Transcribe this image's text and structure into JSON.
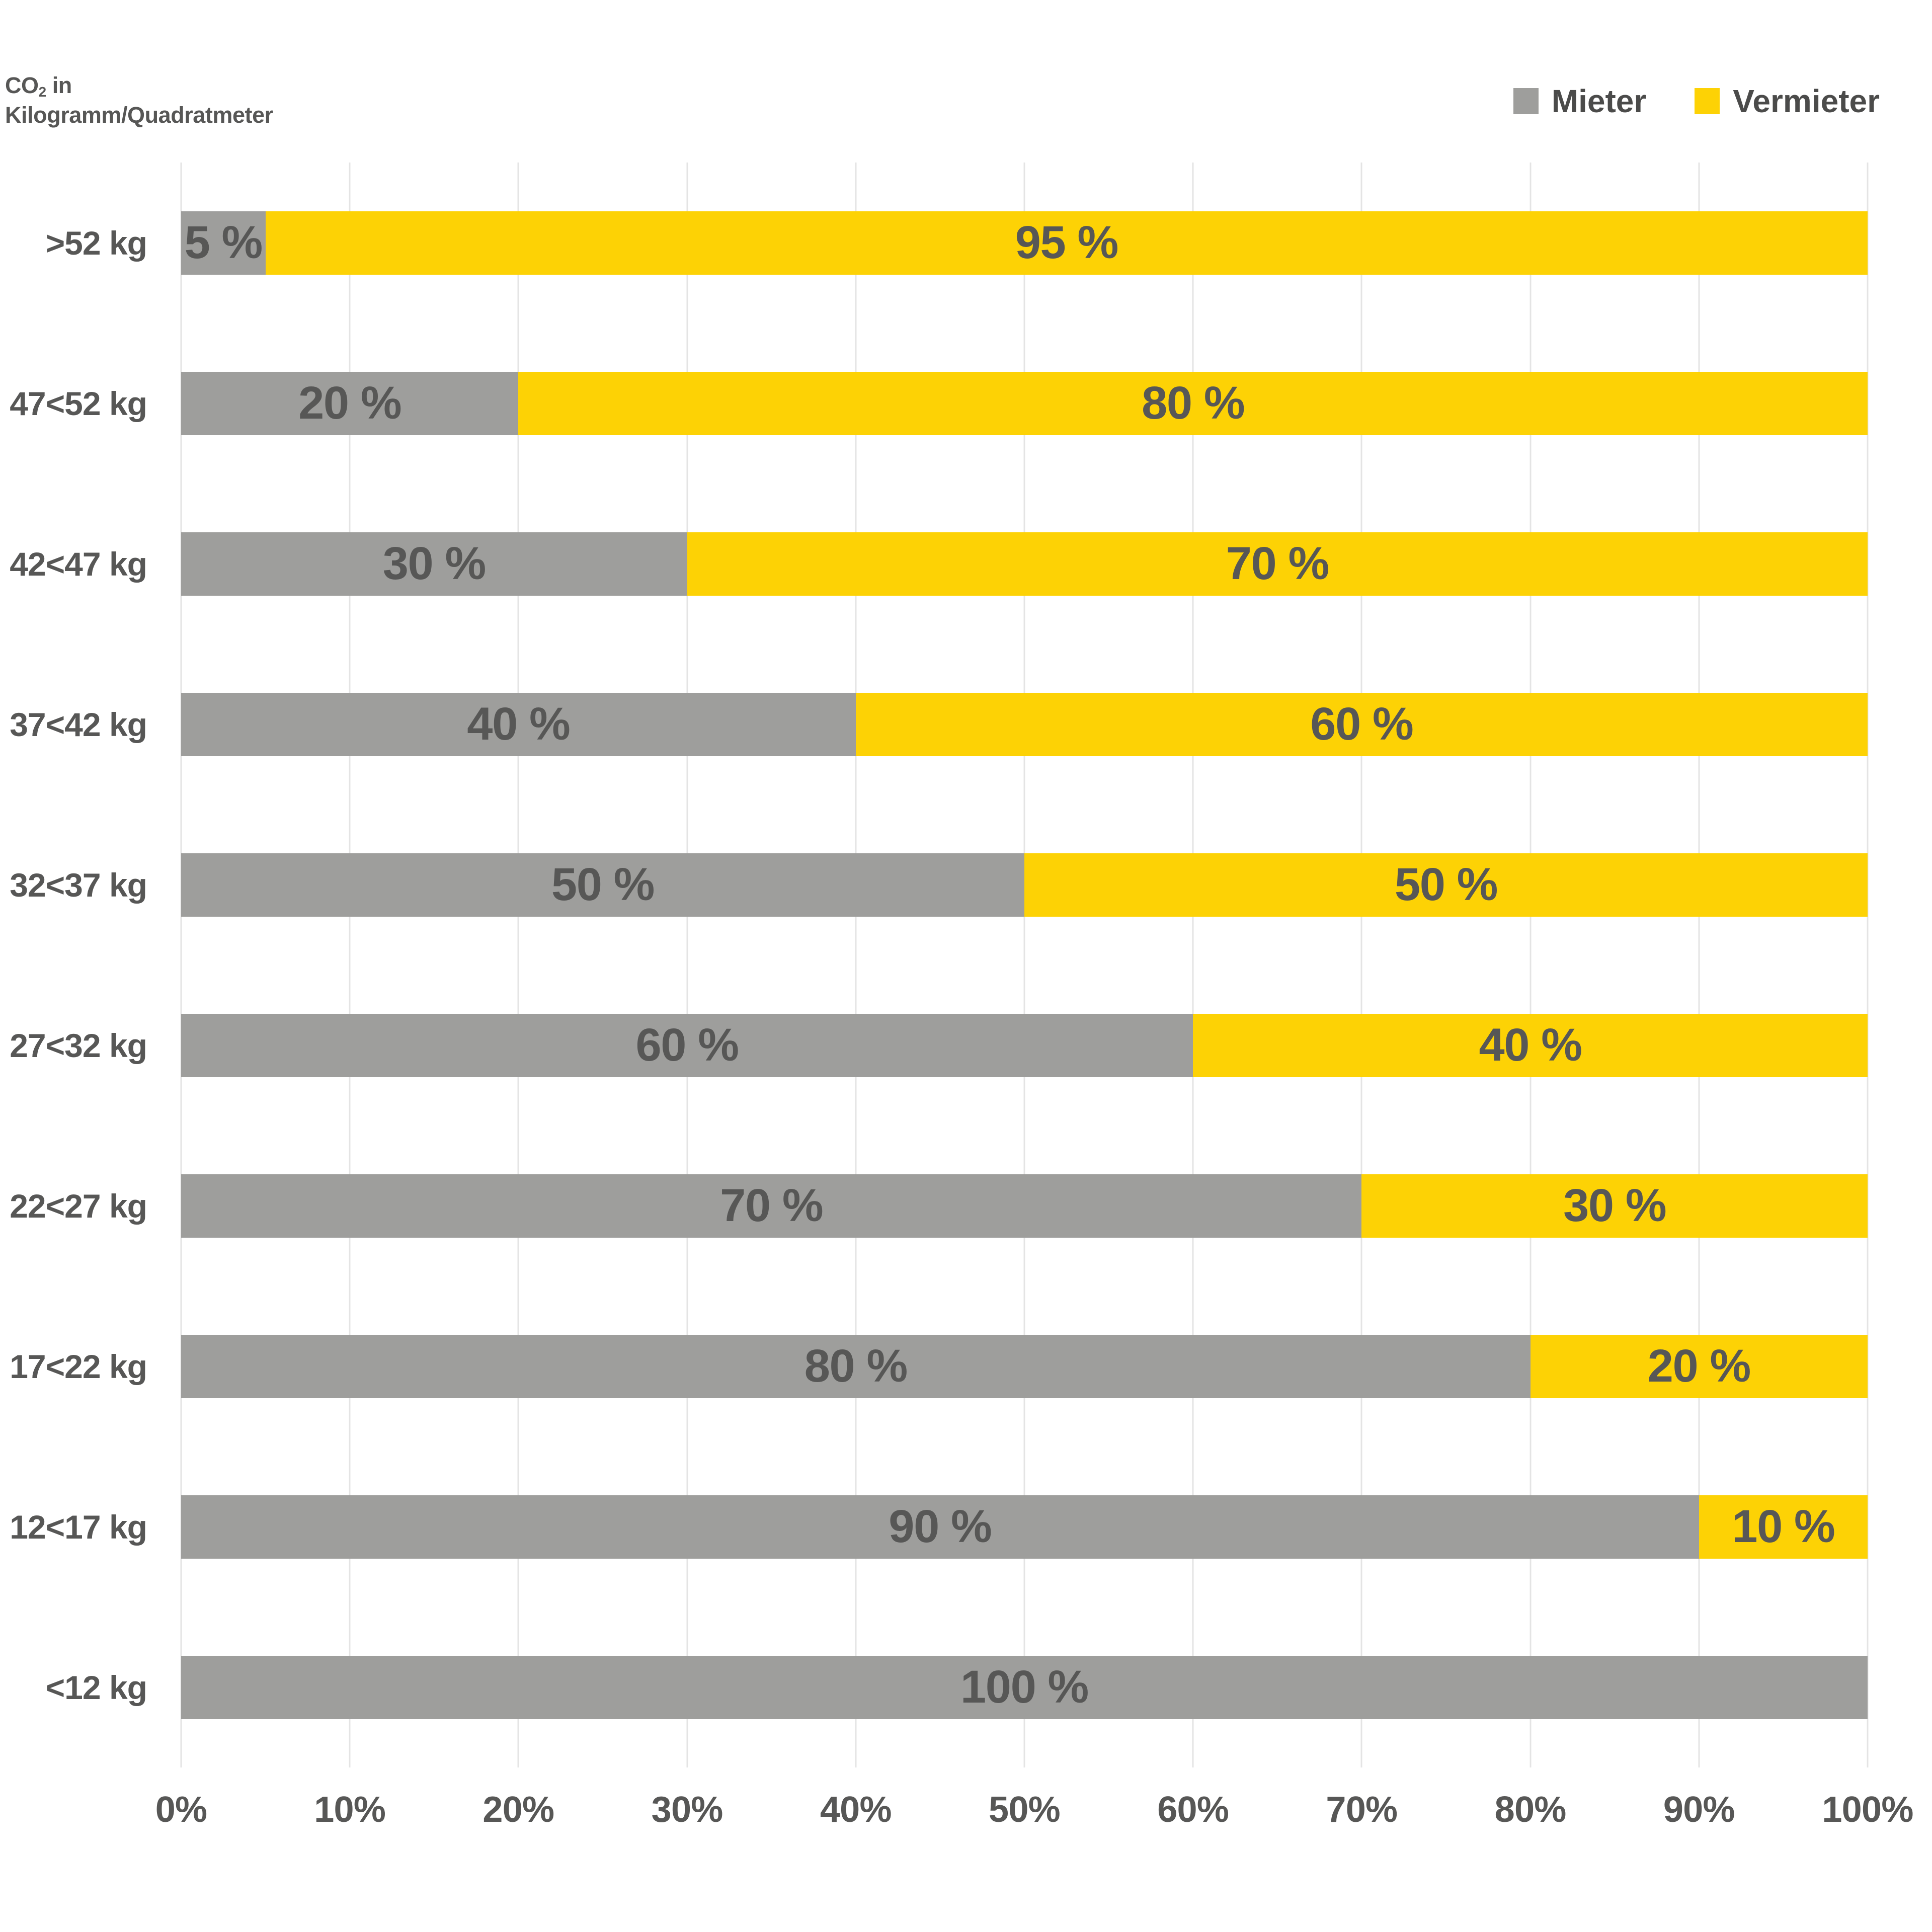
{
  "header": {
    "co2_prefix": "CO",
    "co2_sub": "2",
    "co2_rest": " in",
    "line2": "Kilogramm/Quadratmeter"
  },
  "legend": [
    {
      "label": "Mieter",
      "color": "#9e9e9c"
    },
    {
      "label": "Vermieter",
      "color": "#fdd205"
    }
  ],
  "colors": {
    "mieter_gray": "#9e9e9c",
    "vermieter_yellow": "#fdd205",
    "text_dark_gray": "#575756",
    "gridline": "#e4e4e4",
    "background": "#ffffff"
  },
  "chart_data": {
    "type": "bar",
    "stacked": true,
    "orientation": "horizontal",
    "title": "",
    "ylabel": "CO2 in Kilogramm/Quadratmeter",
    "xlabel": "",
    "grid": "vertical",
    "legend_position": "top-right",
    "categories": [
      ">52 kg",
      "47<52 kg",
      "42<47 kg",
      "37<42 kg",
      "32<37 kg",
      "27<32 kg",
      "22<27 kg",
      "17<22 kg",
      "12<17 kg",
      "<12 kg"
    ],
    "series": [
      {
        "name": "Mieter",
        "color": "#9e9e9c",
        "values": [
          5,
          20,
          30,
          40,
          50,
          60,
          70,
          80,
          90,
          100
        ],
        "labels": [
          "5 %",
          "20 %",
          "30 %",
          "40 %",
          "50 %",
          "60 %",
          "70 %",
          "80 %",
          "90 %",
          "100 %"
        ]
      },
      {
        "name": "Vermieter",
        "color": "#fdd205",
        "values": [
          95,
          80,
          70,
          60,
          50,
          40,
          30,
          20,
          10,
          0
        ],
        "labels": [
          "95 %",
          "80 %",
          "70 %",
          "60 %",
          "50 %",
          "40 %",
          "30 %",
          "20 %",
          "10 %",
          ""
        ]
      }
    ],
    "x_axis": {
      "min": 0,
      "max": 100,
      "tick_step": 10,
      "ticks": [
        "0%",
        "10%",
        "20%",
        "30%",
        "40%",
        "50%",
        "60%",
        "70%",
        "80%",
        "90%",
        "100%"
      ]
    }
  }
}
